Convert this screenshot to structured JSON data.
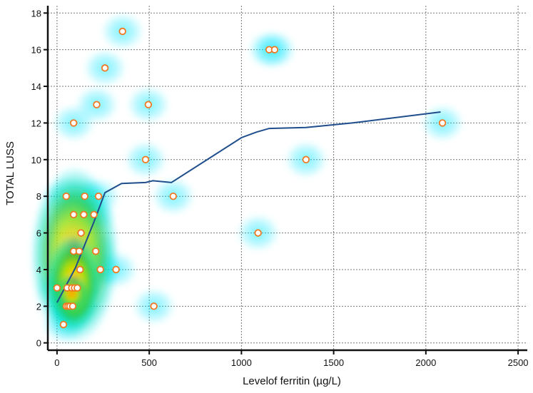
{
  "chart_data": {
    "type": "scatter",
    "xlabel": "Levelof ferritin (µg/L)",
    "ylabel": "TOTAL LUSS",
    "xlim": [
      -50,
      2550
    ],
    "ylim": [
      -0.4,
      18.4
    ],
    "xticks": [
      0,
      500,
      1000,
      1500,
      2000,
      2500
    ],
    "yticks": [
      0,
      2,
      4,
      6,
      8,
      10,
      12,
      14,
      16,
      18
    ],
    "grid": true,
    "legend": "none",
    "overlay": "density heatmap of points (cyan → green → yellow → red)",
    "colors": {
      "marker_edge": "#f07820",
      "marker_fill": "#ffffff",
      "trend_line": "#1f4e8c",
      "density_low": "#00e5ff",
      "density_mid": "#22c840",
      "density_high": "#ff2000"
    },
    "points": [
      {
        "x": 0,
        "y": 3
      },
      {
        "x": 35,
        "y": 1
      },
      {
        "x": 50,
        "y": 8
      },
      {
        "x": 50,
        "y": 2
      },
      {
        "x": 55,
        "y": 3
      },
      {
        "x": 60,
        "y": 2
      },
      {
        "x": 70,
        "y": 2
      },
      {
        "x": 80,
        "y": 3
      },
      {
        "x": 85,
        "y": 2
      },
      {
        "x": 90,
        "y": 12
      },
      {
        "x": 90,
        "y": 7
      },
      {
        "x": 90,
        "y": 5
      },
      {
        "x": 95,
        "y": 3
      },
      {
        "x": 110,
        "y": 3
      },
      {
        "x": 120,
        "y": 5
      },
      {
        "x": 125,
        "y": 4
      },
      {
        "x": 130,
        "y": 6
      },
      {
        "x": 145,
        "y": 7
      },
      {
        "x": 150,
        "y": 8
      },
      {
        "x": 200,
        "y": 7
      },
      {
        "x": 210,
        "y": 5
      },
      {
        "x": 215,
        "y": 13
      },
      {
        "x": 225,
        "y": 8
      },
      {
        "x": 235,
        "y": 4
      },
      {
        "x": 260,
        "y": 15
      },
      {
        "x": 320,
        "y": 4
      },
      {
        "x": 355,
        "y": 17
      },
      {
        "x": 480,
        "y": 10
      },
      {
        "x": 495,
        "y": 13
      },
      {
        "x": 525,
        "y": 2
      },
      {
        "x": 630,
        "y": 8
      },
      {
        "x": 1090,
        "y": 6
      },
      {
        "x": 1150,
        "y": 16
      },
      {
        "x": 1180,
        "y": 16
      },
      {
        "x": 1350,
        "y": 10
      },
      {
        "x": 2090,
        "y": 12
      }
    ],
    "trend_line": [
      {
        "x": 0,
        "y": 2.2
      },
      {
        "x": 100,
        "y": 4.1
      },
      {
        "x": 200,
        "y": 6.6
      },
      {
        "x": 260,
        "y": 8.2
      },
      {
        "x": 350,
        "y": 8.7
      },
      {
        "x": 480,
        "y": 8.75
      },
      {
        "x": 520,
        "y": 8.85
      },
      {
        "x": 620,
        "y": 8.75
      },
      {
        "x": 1000,
        "y": 11.2
      },
      {
        "x": 1080,
        "y": 11.5
      },
      {
        "x": 1150,
        "y": 11.7
      },
      {
        "x": 1350,
        "y": 11.75
      },
      {
        "x": 1600,
        "y": 12.0
      },
      {
        "x": 2080,
        "y": 12.6
      }
    ]
  }
}
